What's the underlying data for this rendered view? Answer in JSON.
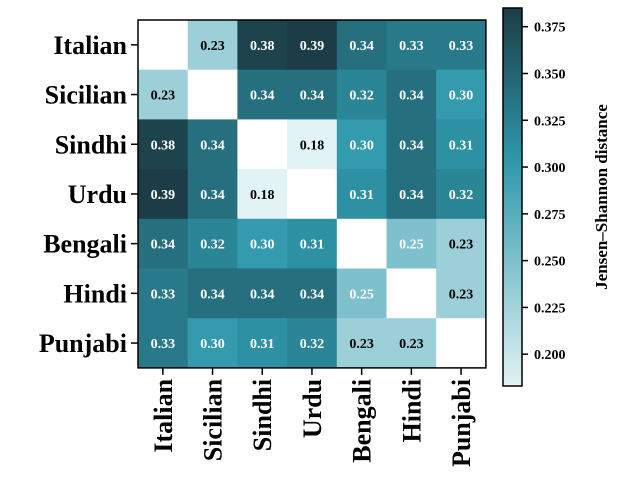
{
  "chart_data": {
    "type": "heatmap",
    "title": "",
    "rows": [
      "Italian",
      "Sicilian",
      "Sindhi",
      "Urdu",
      "Bengali",
      "Hindi",
      "Punjabi"
    ],
    "columns": [
      "Italian",
      "Sicilian",
      "Sindhi",
      "Urdu",
      "Bengali",
      "Hindi",
      "Punjabi"
    ],
    "values": [
      [
        null,
        0.23,
        0.38,
        0.39,
        0.34,
        0.33,
        0.33
      ],
      [
        0.23,
        null,
        0.34,
        0.34,
        0.32,
        0.34,
        0.3
      ],
      [
        0.38,
        0.34,
        null,
        0.18,
        0.3,
        0.34,
        0.31
      ],
      [
        0.39,
        0.34,
        0.18,
        null,
        0.31,
        0.34,
        0.32
      ],
      [
        0.34,
        0.32,
        0.3,
        0.31,
        null,
        0.25,
        0.23
      ],
      [
        0.33,
        0.34,
        0.34,
        0.34,
        0.25,
        null,
        0.23
      ],
      [
        0.33,
        0.3,
        0.31,
        0.32,
        0.23,
        0.23,
        null
      ]
    ],
    "colorbar": {
      "label": "Jensen–Shannon distance",
      "min": 0.183,
      "max": 0.385,
      "ticks": [
        0.2,
        0.225,
        0.25,
        0.275,
        0.3,
        0.325,
        0.35,
        0.375
      ],
      "tick_labels": [
        "0.200",
        "0.225",
        "0.250",
        "0.275",
        "0.300",
        "0.325",
        "0.350",
        "0.375"
      ],
      "color_low": "#e1f3f5",
      "color_mid": "#2e97aa",
      "color_high": "#1c3d47"
    },
    "diagonal_color": "#ffffff"
  }
}
